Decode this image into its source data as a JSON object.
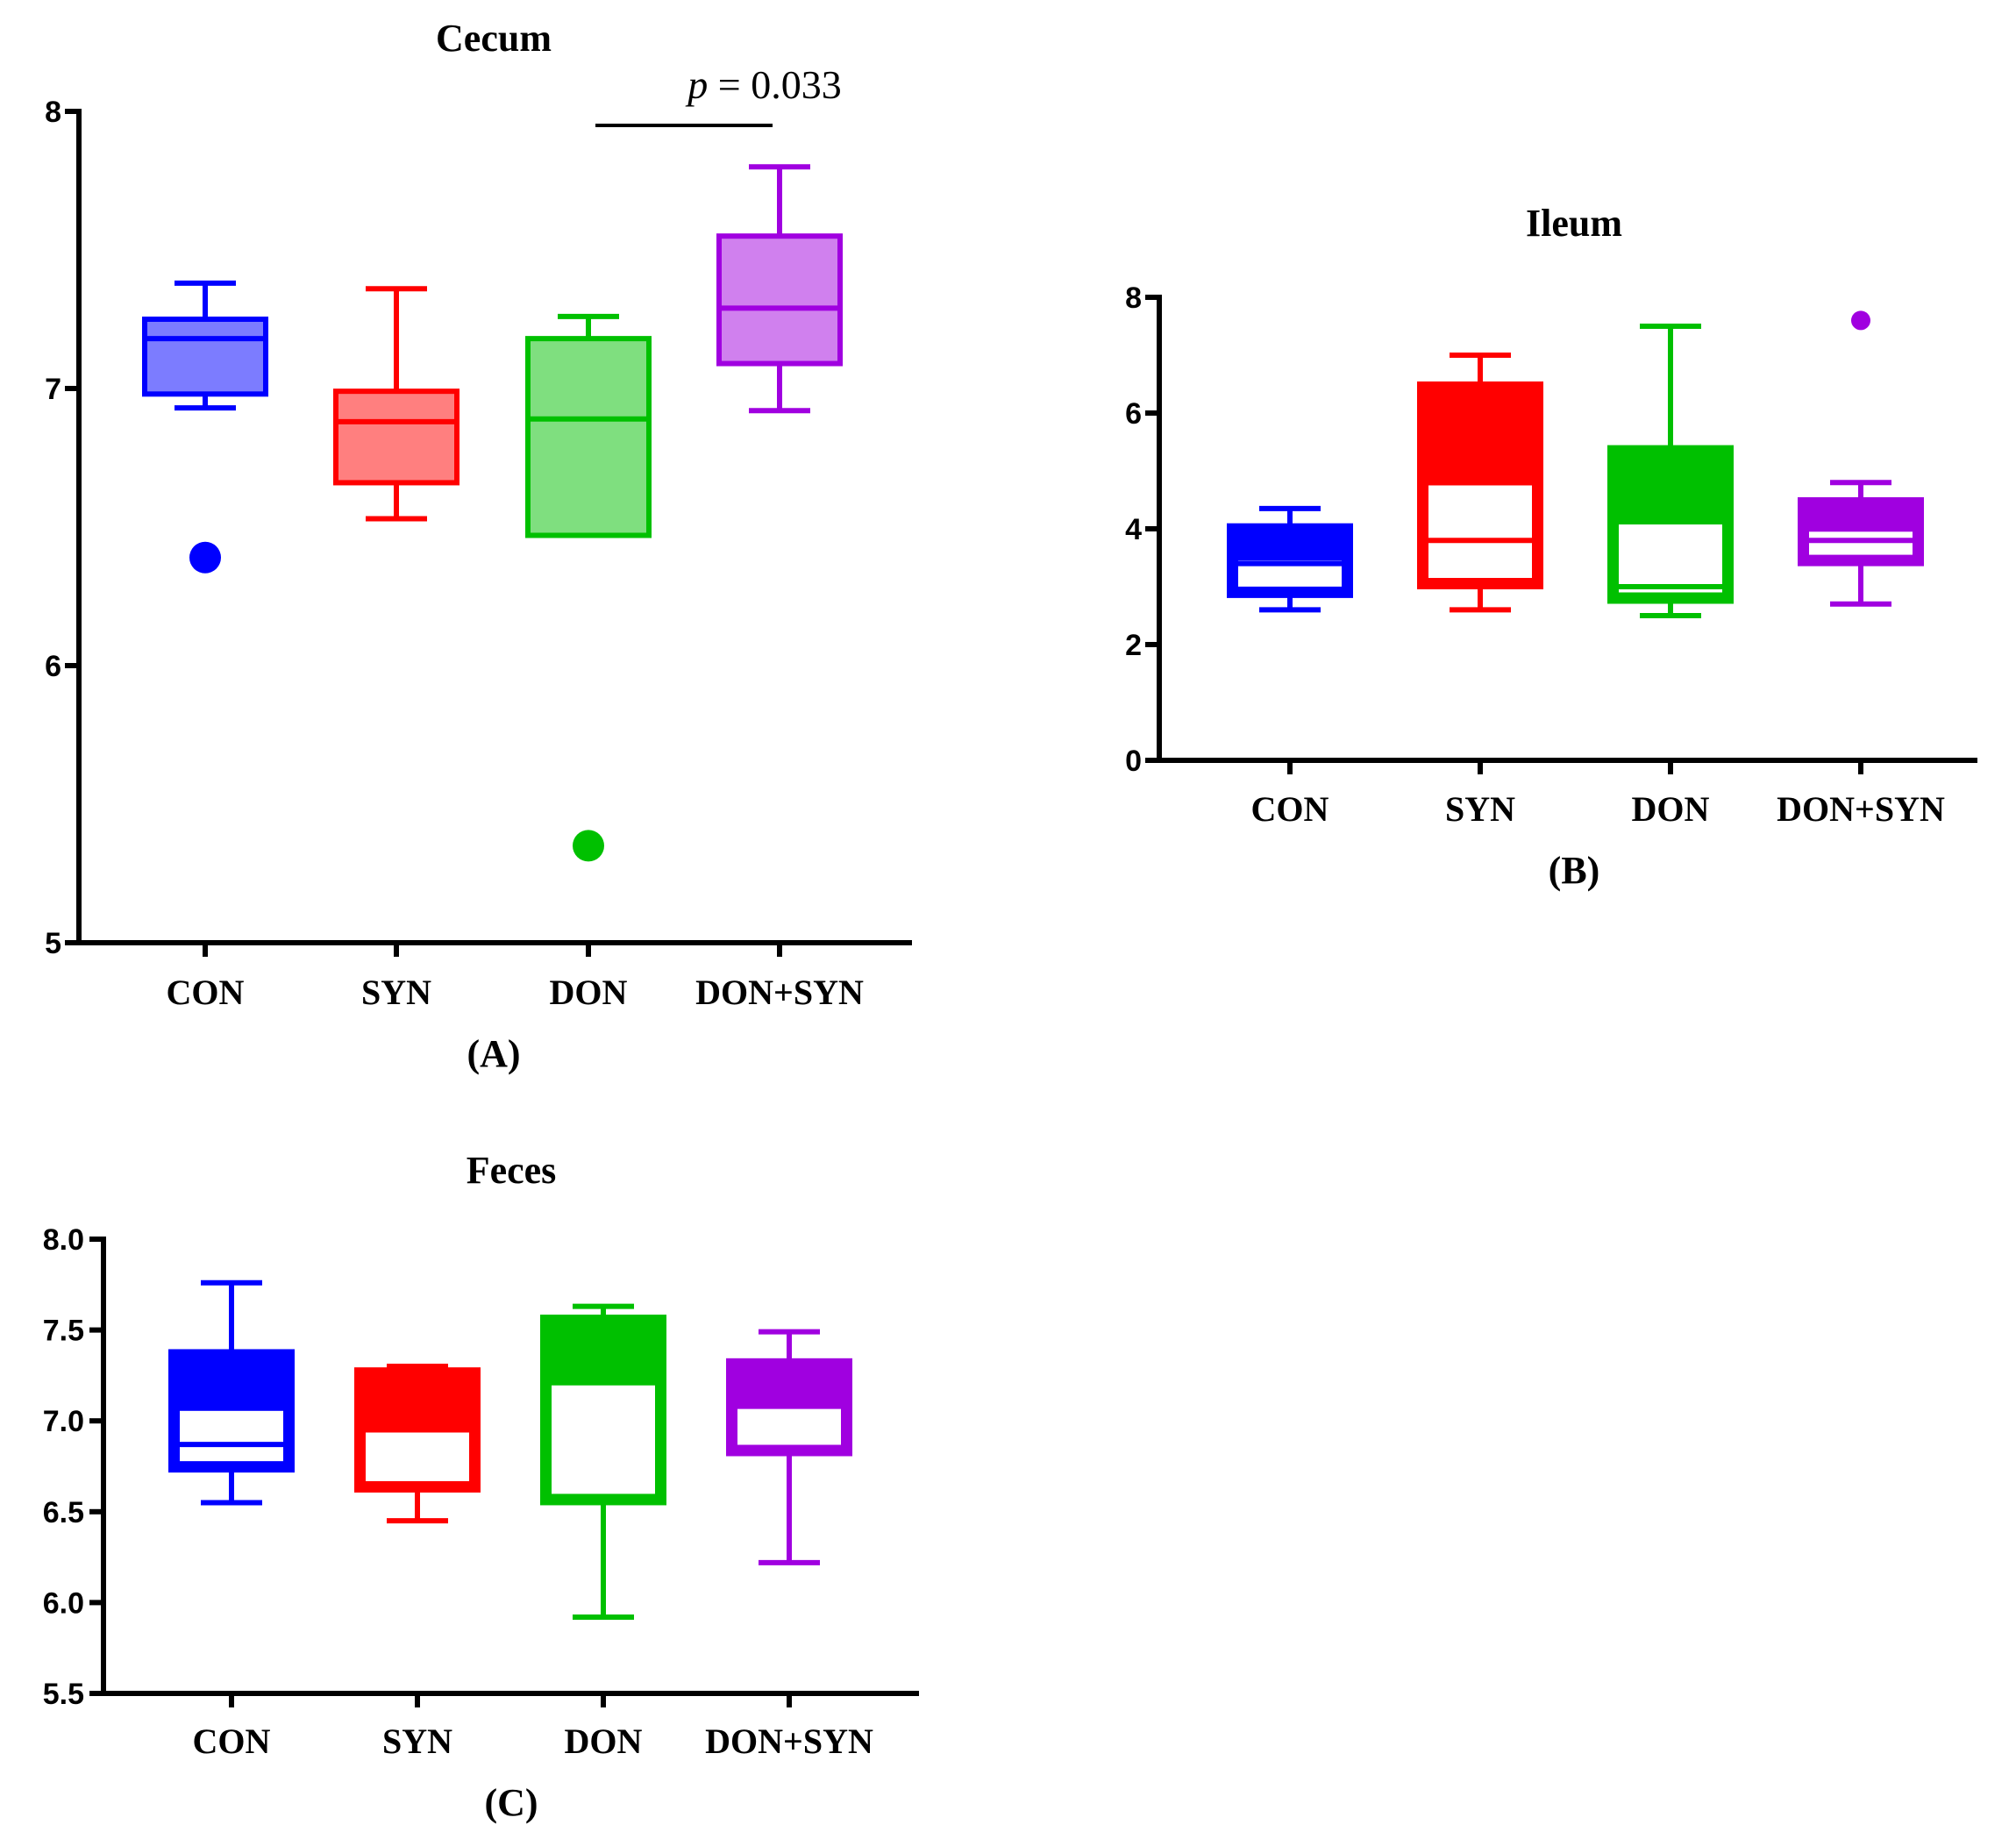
{
  "chart_data": [
    {
      "type": "box",
      "title": "Cecum",
      "panel_label": "(A)",
      "categories": [
        "CON",
        "SYN",
        "DON",
        "DON+SYN"
      ],
      "ylim": [
        5,
        8
      ],
      "yticks": [
        5,
        6,
        7,
        8
      ],
      "ytick_labels": [
        "5",
        "6",
        "7",
        "8"
      ],
      "significance": {
        "text_var": "p",
        "text_value": " = 0.033",
        "between": [
          "DON",
          "DON+SYN"
        ]
      },
      "boxes": [
        {
          "name": "CON",
          "color": "#0000FF",
          "fill": "#7C7CFF",
          "whisker_low": 6.93,
          "q1": 6.98,
          "median": 7.18,
          "q3": 7.25,
          "whisker_high": 7.38,
          "outliers": [
            6.39
          ]
        },
        {
          "name": "SYN",
          "color": "#FF0000",
          "fill": "#FF7F7F",
          "whisker_low": 6.53,
          "q1": 6.66,
          "median": 6.88,
          "q3": 6.99,
          "whisker_high": 7.36,
          "outliers": []
        },
        {
          "name": "DON",
          "color": "#00C000",
          "fill": "#7FDF7F",
          "whisker_low": 6.47,
          "q1": 6.47,
          "median": 6.89,
          "q3": 7.18,
          "whisker_high": 7.26,
          "outliers": [
            5.35
          ]
        },
        {
          "name": "DON+SYN",
          "color": "#A000E0",
          "fill": "#D080EE",
          "whisker_low": 6.92,
          "q1": 7.09,
          "median": 7.29,
          "q3": 7.55,
          "whisker_high": 7.8,
          "outliers": []
        }
      ]
    },
    {
      "type": "box",
      "title": "Ileum",
      "panel_label": "(B)",
      "categories": [
        "CON",
        "SYN",
        "DON",
        "DON+SYN"
      ],
      "ylim": [
        0,
        8
      ],
      "yticks": [
        0,
        2,
        4,
        6,
        8
      ],
      "ytick_labels": [
        "0",
        "2",
        "4",
        "6",
        "8"
      ],
      "boxes": [
        {
          "name": "CON",
          "color": "#0000FF",
          "whisker_low": 2.6,
          "q1": 2.85,
          "median": 3.4,
          "q3": 4.05,
          "whisker_high": 4.35,
          "outliers": []
        },
        {
          "name": "SYN",
          "color": "#FF0000",
          "whisker_low": 2.6,
          "q1": 3.0,
          "median": 3.8,
          "q3": 6.5,
          "whisker_high": 7.0,
          "outliers": []
        },
        {
          "name": "DON",
          "color": "#00C000",
          "whisker_low": 2.5,
          "q1": 2.75,
          "median": 3.0,
          "q3": 5.4,
          "whisker_high": 7.5,
          "outliers": []
        },
        {
          "name": "DON+SYN",
          "color": "#A000E0",
          "whisker_low": 2.7,
          "q1": 3.4,
          "median": 3.8,
          "q3": 4.5,
          "whisker_high": 4.8,
          "outliers": [
            7.6
          ]
        }
      ]
    },
    {
      "type": "box",
      "title": "Feces",
      "panel_label": "(C)",
      "categories": [
        "CON",
        "SYN",
        "DON",
        "DON+SYN"
      ],
      "ylim": [
        5.5,
        8.0
      ],
      "yticks": [
        5.5,
        6.0,
        6.5,
        7.0,
        7.5,
        8.0
      ],
      "ytick_labels": [
        "5.5",
        "6.0",
        "6.5",
        "7.0",
        "7.5",
        "8.0"
      ],
      "boxes": [
        {
          "name": "CON",
          "color": "#0000FF",
          "whisker_low": 6.55,
          "q1": 6.73,
          "median": 6.87,
          "q3": 7.38,
          "whisker_high": 7.76,
          "outliers": []
        },
        {
          "name": "SYN",
          "color": "#FF0000",
          "whisker_low": 6.45,
          "q1": 6.62,
          "median": 6.95,
          "q3": 7.28,
          "whisker_high": 7.3,
          "outliers": []
        },
        {
          "name": "DON",
          "color": "#00C000",
          "whisker_low": 5.92,
          "q1": 6.55,
          "median": 7.21,
          "q3": 7.57,
          "whisker_high": 7.63,
          "outliers": []
        },
        {
          "name": "DON+SYN",
          "color": "#A000E0",
          "whisker_low": 6.22,
          "q1": 6.82,
          "median": 7.08,
          "q3": 7.33,
          "whisker_high": 7.49,
          "outliers": []
        }
      ]
    }
  ]
}
